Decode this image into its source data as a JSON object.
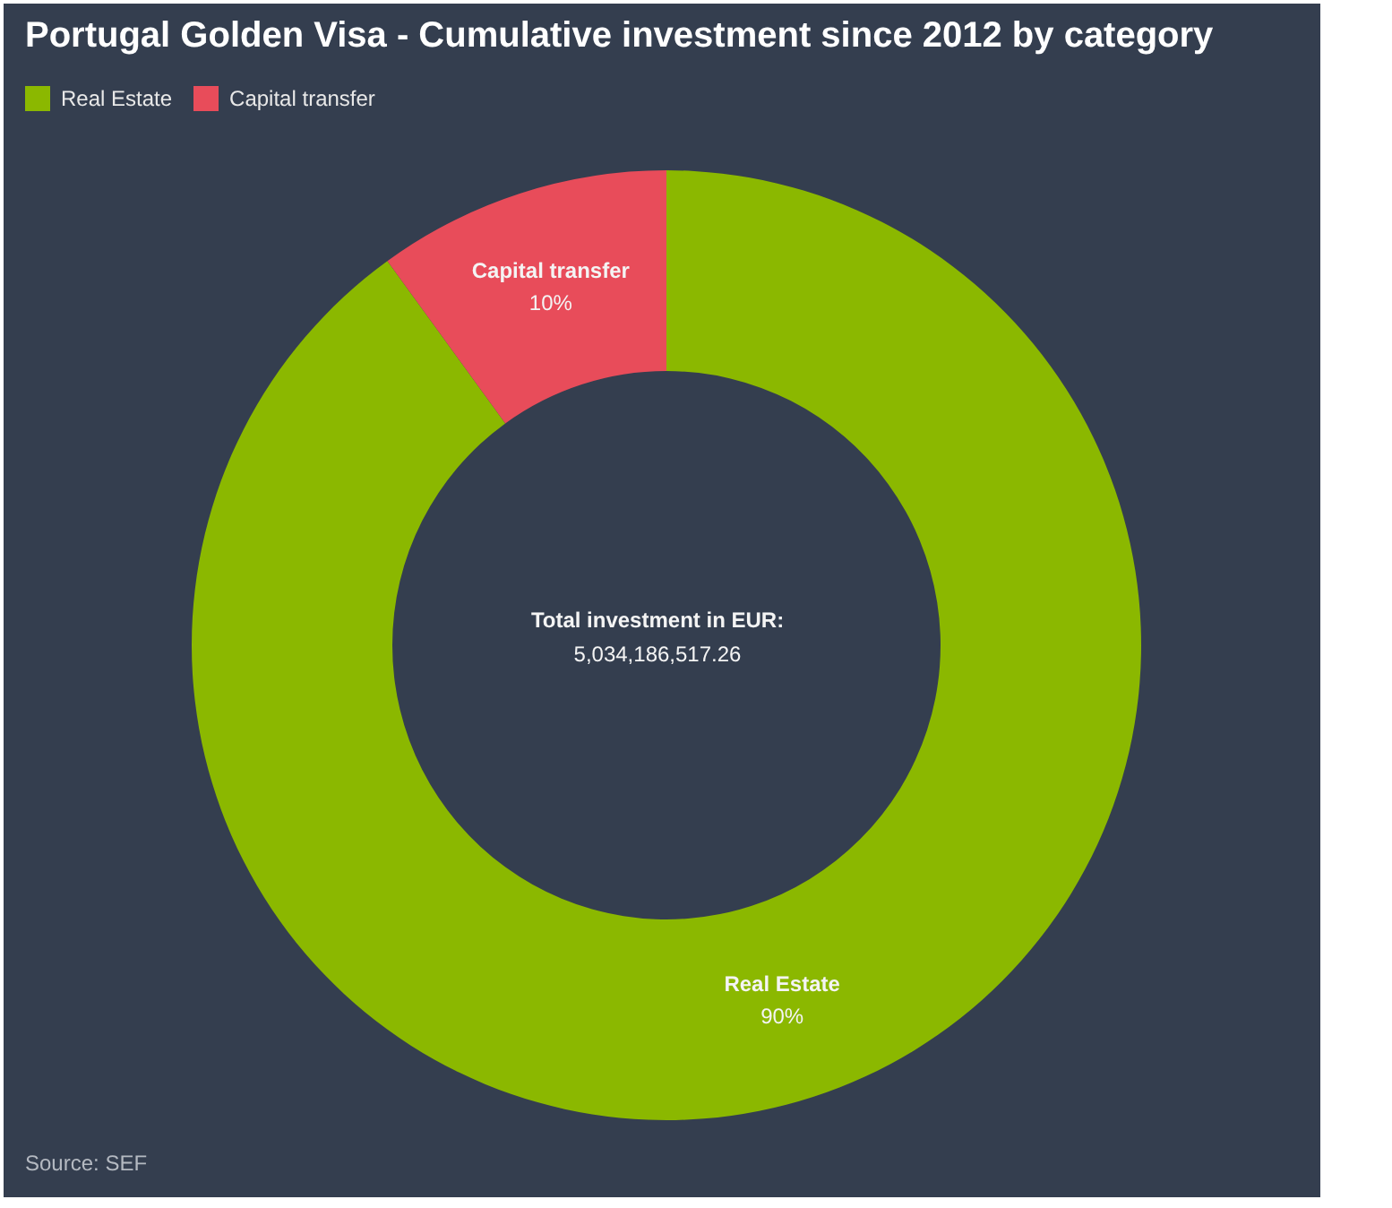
{
  "chart_data": {
    "type": "donut",
    "title": "Portugal Golden Visa - Cumulative investment since 2012 by category",
    "categories": [
      "Real Estate",
      "Capital transfer"
    ],
    "values": [
      90,
      10
    ],
    "colors": [
      "#8bb800",
      "#e84c5a"
    ],
    "value_labels": [
      "90%",
      "10%"
    ],
    "legend": "top left",
    "annotations": [
      "Total investment in EUR:",
      "5,034,186,517.26",
      "Source: SEF"
    ]
  }
}
